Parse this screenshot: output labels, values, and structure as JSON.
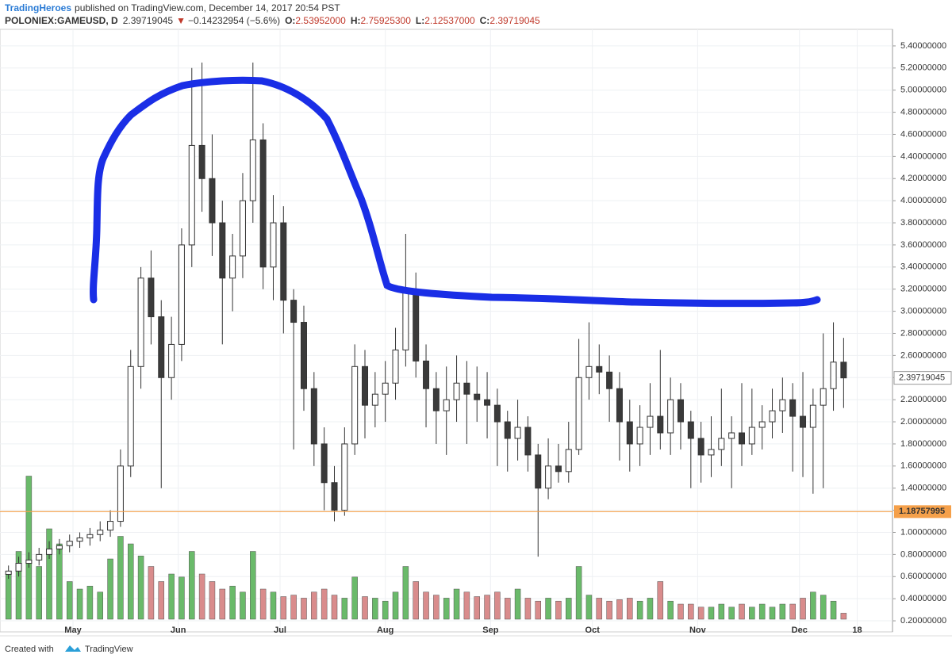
{
  "header": {
    "publisher": "TradingHeroes",
    "published_text": "published on TradingView.com, December 14, 2017 20:54 PST",
    "symbol": "POLONIEX:GAMEUSD, D",
    "last": "2.39719045",
    "change": "−0.14232954 (−5.6%)",
    "ohlc": [
      {
        "key": "O:",
        "value": "2.53952000"
      },
      {
        "key": "H:",
        "value": "2.75925300"
      },
      {
        "key": "L:",
        "value": "2.12537000"
      },
      {
        "key": "C:",
        "value": "2.39719045"
      }
    ]
  },
  "footer": {
    "created": "Created with",
    "brand": "TradingView"
  },
  "chart_data": {
    "type": "candlestick",
    "up_color": "#ffffff",
    "down_color": "#3a3a3a",
    "volume_up_color": "#6aba6a",
    "volume_down_color": "#d98c8c",
    "grid": true,
    "x": [
      -19,
      -16,
      -13,
      -10,
      -7,
      -4,
      -1,
      2,
      5,
      8,
      11,
      14,
      17,
      20,
      23,
      26,
      29,
      32,
      35,
      38,
      41,
      44,
      47,
      50,
      53,
      56,
      59,
      62,
      65,
      68,
      71,
      74,
      77,
      80,
      83,
      86,
      89,
      92,
      95,
      98,
      101,
      104,
      107,
      110,
      113,
      116,
      119,
      122,
      125,
      128,
      131,
      134,
      137,
      140,
      143,
      146,
      149,
      152,
      155,
      158,
      161,
      164,
      167,
      170,
      173,
      176,
      179,
      182,
      185,
      188,
      191,
      194,
      197,
      200,
      203,
      206,
      209,
      212,
      215,
      218,
      221,
      224,
      227
    ],
    "open": [
      0.62,
      0.65,
      0.72,
      0.75,
      0.8,
      0.85,
      0.88,
      0.92,
      0.95,
      0.98,
      1.02,
      1.1,
      1.6,
      2.5,
      3.3,
      2.95,
      2.4,
      2.7,
      3.6,
      4.5,
      4.2,
      3.8,
      3.3,
      3.5,
      4.0,
      4.55,
      3.4,
      3.8,
      3.1,
      2.9,
      2.3,
      1.8,
      1.45,
      1.2,
      1.8,
      2.5,
      2.15,
      2.25,
      2.35,
      2.65,
      3.2,
      2.55,
      2.3,
      2.1,
      2.2,
      2.35,
      2.25,
      2.2,
      2.15,
      2.0,
      1.85,
      1.95,
      1.7,
      1.4,
      1.6,
      1.55,
      1.75,
      2.4,
      2.5,
      2.45,
      2.3,
      2.0,
      1.8,
      1.95,
      2.05,
      1.9,
      2.2,
      2.0,
      1.85,
      1.7,
      1.75,
      1.85,
      1.9,
      1.8,
      1.95,
      2.0,
      2.1,
      2.2,
      2.05,
      1.95,
      2.15,
      2.3,
      2.53952
    ],
    "high": [
      0.7,
      0.78,
      0.82,
      0.86,
      0.92,
      0.94,
      0.98,
      1.0,
      1.04,
      1.1,
      1.2,
      1.75,
      2.65,
      3.4,
      3.55,
      3.1,
      2.95,
      3.75,
      5.2,
      5.25,
      4.6,
      4.0,
      3.7,
      4.25,
      5.25,
      4.7,
      4.05,
      3.95,
      3.2,
      3.05,
      2.45,
      1.95,
      1.6,
      1.95,
      2.7,
      2.65,
      2.45,
      2.55,
      2.85,
      3.7,
      3.35,
      2.7,
      2.45,
      2.5,
      2.6,
      2.55,
      2.5,
      2.45,
      2.3,
      2.1,
      2.2,
      2.05,
      1.8,
      1.85,
      1.8,
      2.0,
      2.75,
      2.9,
      2.7,
      2.6,
      2.45,
      2.2,
      2.15,
      2.35,
      2.65,
      2.4,
      2.35,
      2.1,
      2.0,
      2.05,
      2.3,
      2.05,
      2.35,
      2.3,
      2.15,
      2.3,
      2.4,
      2.35,
      2.45,
      2.3,
      2.8,
      2.9,
      2.759253
    ],
    "low": [
      0.58,
      0.6,
      0.68,
      0.7,
      0.76,
      0.8,
      0.82,
      0.86,
      0.88,
      0.92,
      0.96,
      1.05,
      1.5,
      2.3,
      2.7,
      1.4,
      2.2,
      2.55,
      3.4,
      3.9,
      3.5,
      2.7,
      3.0,
      3.3,
      3.8,
      3.2,
      3.1,
      2.8,
      1.75,
      2.1,
      1.6,
      1.2,
      1.1,
      1.15,
      1.7,
      1.85,
      1.95,
      2.0,
      2.2,
      2.5,
      2.4,
      1.95,
      1.8,
      1.7,
      2.0,
      1.8,
      2.0,
      1.85,
      1.6,
      1.55,
      1.65,
      1.55,
      0.78,
      1.3,
      1.45,
      1.45,
      1.7,
      2.2,
      2.25,
      2.0,
      1.65,
      1.55,
      1.6,
      1.7,
      1.75,
      1.7,
      1.75,
      1.4,
      1.45,
      1.5,
      1.6,
      1.4,
      1.6,
      1.7,
      1.75,
      1.85,
      1.9,
      1.55,
      1.5,
      1.35,
      1.4,
      2.1,
      2.12537
    ],
    "close": [
      0.65,
      0.72,
      0.75,
      0.8,
      0.85,
      0.88,
      0.92,
      0.95,
      0.98,
      1.02,
      1.1,
      1.6,
      2.5,
      3.3,
      2.95,
      2.4,
      2.7,
      3.6,
      4.5,
      4.2,
      3.8,
      3.3,
      3.5,
      4.0,
      4.55,
      3.4,
      3.8,
      3.1,
      2.9,
      2.3,
      1.8,
      1.45,
      1.2,
      1.8,
      2.5,
      2.15,
      2.25,
      2.35,
      2.65,
      3.2,
      2.55,
      2.3,
      2.1,
      2.2,
      2.35,
      2.25,
      2.2,
      2.15,
      2.0,
      1.85,
      1.95,
      1.7,
      1.4,
      1.6,
      1.55,
      1.75,
      2.4,
      2.5,
      2.45,
      2.3,
      2.0,
      1.8,
      1.95,
      2.05,
      1.9,
      2.2,
      2.0,
      1.85,
      1.7,
      1.75,
      1.85,
      1.9,
      1.8,
      1.95,
      2.0,
      2.1,
      2.2,
      2.05,
      1.95,
      2.15,
      2.3,
      2.54,
      2.39719045
    ],
    "volume": [
      30,
      45,
      95,
      35,
      60,
      50,
      25,
      20,
      22,
      18,
      40,
      55,
      50,
      42,
      35,
      25,
      30,
      28,
      45,
      30,
      25,
      20,
      22,
      18,
      45,
      20,
      18,
      15,
      16,
      14,
      18,
      20,
      16,
      14,
      28,
      15,
      14,
      12,
      18,
      35,
      25,
      18,
      16,
      14,
      20,
      18,
      15,
      16,
      18,
      14,
      20,
      14,
      12,
      14,
      12,
      14,
      35,
      16,
      14,
      12,
      13,
      14,
      12,
      14,
      25,
      12,
      10,
      10,
      8,
      8,
      10,
      8,
      10,
      8,
      10,
      8,
      10,
      10,
      14,
      18,
      16,
      12,
      4
    ],
    "volume_lim": [
      0,
      100
    ],
    "xlim": [
      -21.5,
      241.4
    ],
    "xticks": [
      {
        "value": 0,
        "label": "May"
      },
      {
        "value": 31,
        "label": "Jun"
      },
      {
        "value": 61,
        "label": "Jul"
      },
      {
        "value": 92,
        "label": "Aug"
      },
      {
        "value": 123,
        "label": "Sep"
      },
      {
        "value": 153,
        "label": "Oct"
      },
      {
        "value": 184,
        "label": "Nov"
      },
      {
        "value": 214,
        "label": "Dec"
      },
      {
        "value": 231,
        "label": "18"
      }
    ],
    "ylim": [
      0.1,
      5.55
    ],
    "yticks": [
      {
        "value": 0.2,
        "label": "0.20000000"
      },
      {
        "value": 0.4,
        "label": "0.40000000"
      },
      {
        "value": 0.6,
        "label": "0.60000000"
      },
      {
        "value": 0.8,
        "label": "0.80000000"
      },
      {
        "value": 1.0,
        "label": "1.00000000"
      },
      {
        "value": 1.2,
        "label": "1.20000000"
      },
      {
        "value": 1.4,
        "label": "1.40000000"
      },
      {
        "value": 1.6,
        "label": "1.60000000"
      },
      {
        "value": 1.8,
        "label": "1.80000000"
      },
      {
        "value": 2.0,
        "label": "2.00000000"
      },
      {
        "value": 2.2,
        "label": "2.20000000"
      },
      {
        "value": 2.4,
        "label": "2.40000000"
      },
      {
        "value": 2.6,
        "label": "2.60000000"
      },
      {
        "value": 2.8,
        "label": "2.80000000"
      },
      {
        "value": 3.0,
        "label": "3.00000000"
      },
      {
        "value": 3.2,
        "label": "3.20000000"
      },
      {
        "value": 3.4,
        "label": "3.40000000"
      },
      {
        "value": 3.6,
        "label": "3.60000000"
      },
      {
        "value": 3.8,
        "label": "3.80000000"
      },
      {
        "value": 4.0,
        "label": "4.00000000"
      },
      {
        "value": 4.2,
        "label": "4.20000000"
      },
      {
        "value": 4.4,
        "label": "4.40000000"
      },
      {
        "value": 4.6,
        "label": "4.60000000"
      },
      {
        "value": 4.8,
        "label": "4.80000000"
      },
      {
        "value": 5.0,
        "label": "5.00000000"
      },
      {
        "value": 5.2,
        "label": "5.20000000"
      },
      {
        "value": 5.4,
        "label": "5.40000000"
      }
    ],
    "hline": {
      "value": 1.18757995,
      "color": "#f5a04a"
    }
  }
}
